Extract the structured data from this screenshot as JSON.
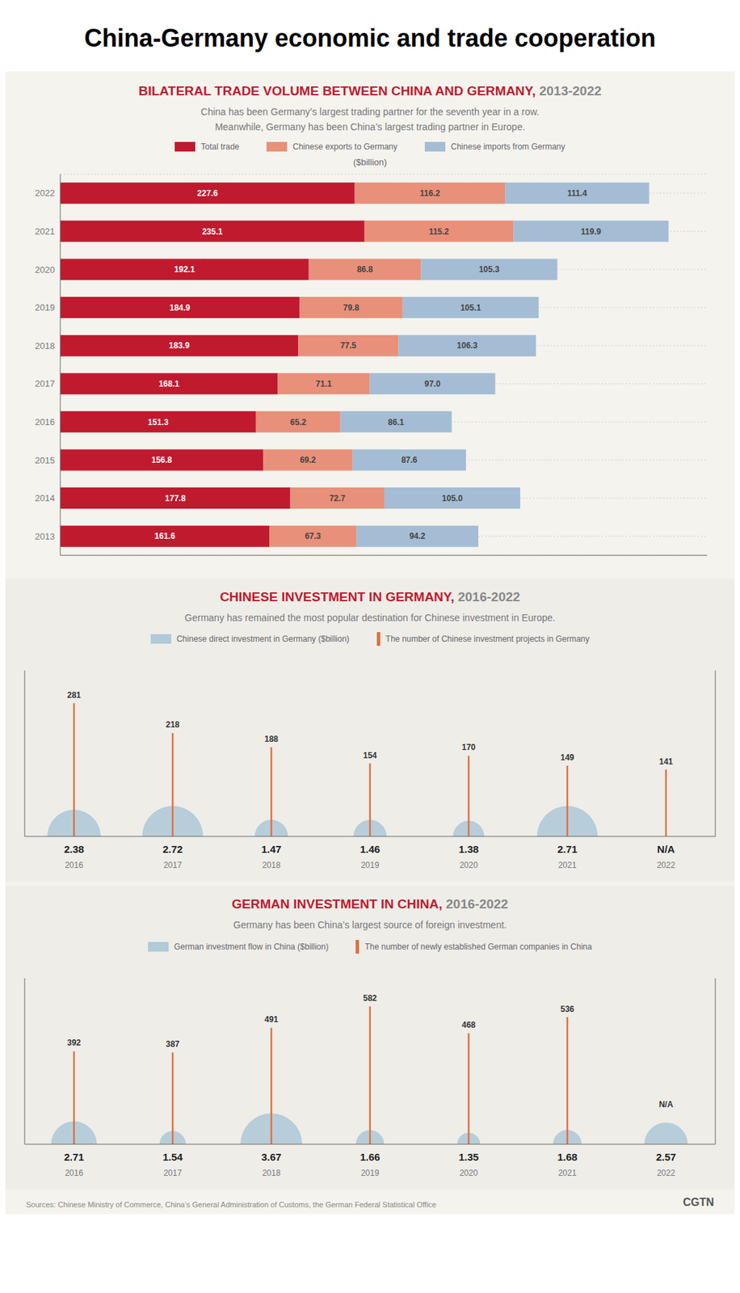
{
  "title": "China-Germany economic and trade cooperation",
  "annotations": [
    "Sources: Chinese Ministry of Commerce, China’s General Administration of Customs, the German Federal Statistical Office",
    "CGTN"
  ],
  "chart_data": [
    {
      "type": "bar",
      "orientation": "horizontal",
      "stacked": true,
      "title": "BILATERAL TRADE VOLUME BETWEEN CHINA AND GERMANY, 2013-2022",
      "subtitle": "China has been Germany’s largest trading partner for the seventh year in a row.\nMeanwhile, Germany has been China’s largest trading partner in Europe.",
      "xlabel": "($billion)",
      "categories": [
        "2022",
        "2021",
        "2020",
        "2019",
        "2018",
        "2017",
        "2016",
        "2015",
        "2014",
        "2013"
      ],
      "series": [
        {
          "name": "Total trade",
          "color": "#c01a2e",
          "values": [
            227.6,
            235.1,
            192.1,
            184.9,
            183.9,
            168.1,
            151.3,
            156.8,
            177.8,
            161.6
          ]
        },
        {
          "name": "Chinese exports to Germany",
          "color": "#e8907a",
          "values": [
            116.2,
            115.2,
            86.8,
            79.8,
            77.5,
            71.1,
            65.2,
            69.2,
            72.7,
            67.3
          ]
        },
        {
          "name": "Chinese imports from Germany",
          "color": "#a4bdd4",
          "values": [
            111.4,
            119.9,
            105.3,
            105.1,
            106.3,
            97.0,
            86.1,
            87.6,
            105.0,
            94.2
          ],
          "value_labels": [
            "111.4",
            "119.9",
            "105.3",
            "105.1",
            "106.3",
            "97.0",
            "86.1",
            "87.6",
            "105.0",
            "94.2"
          ]
        }
      ],
      "xlim": [
        0,
        500
      ],
      "grid": true,
      "legend": "top",
      "data_labels": true,
      "tick_labels": "y"
    },
    {
      "type": "combo",
      "title": "CHINESE INVESTMENT IN GERMANY, 2016-2022",
      "subtitle": "Germany has remained the most popular destination for Chinese investment in Europe.",
      "categories": [
        "2016",
        "2017",
        "2018",
        "2019",
        "2020",
        "2021",
        "2022"
      ],
      "series": [
        {
          "name": "Chinese direct investment in Germany ($billion)",
          "type": "semicircle",
          "color": "#b0cad8",
          "values": [
            2.38,
            2.72,
            1.47,
            1.46,
            1.38,
            2.71,
            null
          ],
          "value_labels": [
            "2.38",
            "2.72",
            "1.47",
            "1.46",
            "1.38",
            "2.71",
            "N/A"
          ]
        },
        {
          "name": "The number of Chinese investment projects in Germany",
          "type": "stem",
          "color": "#e07040",
          "axis": "y2",
          "values": [
            281,
            218,
            188,
            154,
            170,
            149,
            141
          ]
        }
      ],
      "ylim": [
        0,
        15
      ],
      "y2lim": [
        0,
        350
      ],
      "legend": "top",
      "data_labels": true,
      "tick_labels": "x"
    },
    {
      "type": "combo",
      "title": "GERMAN INVESTMENT IN CHINA, 2016-2022",
      "subtitle": "Germany has been China’s largest source of foreign investment.",
      "categories": [
        "2016",
        "2017",
        "2018",
        "2019",
        "2020",
        "2021",
        "2022"
      ],
      "series": [
        {
          "name": "German investment flow in China ($billion)",
          "type": "semicircle",
          "color": "#b0cad8",
          "values": [
            2.71,
            1.54,
            3.67,
            1.66,
            1.35,
            1.68,
            2.57
          ],
          "value_labels": [
            "2.71",
            "1.54",
            "3.67",
            "1.66",
            "1.35",
            "1.68",
            "2.57"
          ]
        },
        {
          "name": "The number of newly established German companies in China",
          "type": "stem",
          "color": "#e07040",
          "axis": "y2",
          "values": [
            392,
            387,
            491,
            582,
            468,
            536,
            null
          ],
          "value_labels": [
            "392",
            "387",
            "491",
            "582",
            "468",
            "536",
            "N/A"
          ]
        }
      ],
      "ylim": [
        0,
        20
      ],
      "y2lim": [
        0,
        700
      ],
      "legend": "top",
      "data_labels": true,
      "tick_labels": "x"
    }
  ]
}
